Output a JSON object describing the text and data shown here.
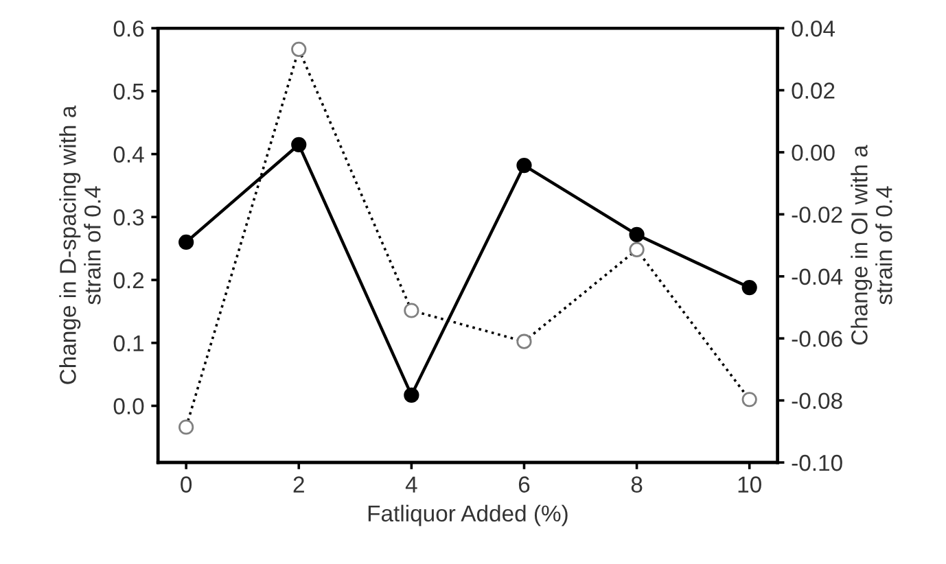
{
  "chart_data": {
    "type": "line",
    "xlabel": "Fatliquor Added (%)",
    "ylabel": "Change in D-spacing with a\nstrain of 0.4",
    "y2label": "Change in OI with a\nstrain of 0.4",
    "x": [
      0,
      2,
      4,
      6,
      8,
      10
    ],
    "xlim": [
      -0.5,
      10.5
    ],
    "xticks": [
      0,
      2,
      4,
      6,
      8,
      10
    ],
    "ylim": [
      -0.09,
      0.6
    ],
    "yticks": [
      {
        "value": 0.0,
        "label": "0.0"
      },
      {
        "value": 0.1,
        "label": "0.1"
      },
      {
        "value": 0.2,
        "label": "0.2"
      },
      {
        "value": 0.3,
        "label": "0.3"
      },
      {
        "value": 0.4,
        "label": "0.4"
      },
      {
        "value": 0.5,
        "label": "0.5"
      },
      {
        "value": 0.6,
        "label": "0.6"
      }
    ],
    "y2lim": [
      -0.1,
      0.04
    ],
    "y2ticks": [
      {
        "value": -0.1,
        "label": "-0.10"
      },
      {
        "value": -0.08,
        "label": "-0.08"
      },
      {
        "value": -0.06,
        "label": "-0.06"
      },
      {
        "value": -0.04,
        "label": "-0.04"
      },
      {
        "value": -0.02,
        "label": "-0.02"
      },
      {
        "value": 0.0,
        "label": "0.00"
      },
      {
        "value": 0.02,
        "label": "0.02"
      },
      {
        "value": 0.04,
        "label": "0.04"
      }
    ],
    "grid": false,
    "legend": false,
    "marker": "circle",
    "series": [
      {
        "color": "#000000",
        "line_style": "solid",
        "values": [
          0.26,
          0.415,
          0.017,
          0.382,
          0.272,
          0.188
        ]
      },
      {
        "color": "#808080",
        "line_style": "dotted",
        "axis": "y2",
        "values": [
          -0.0886,
          0.0332,
          -0.051,
          -0.061,
          -0.0314,
          -0.0797
        ]
      }
    ]
  }
}
